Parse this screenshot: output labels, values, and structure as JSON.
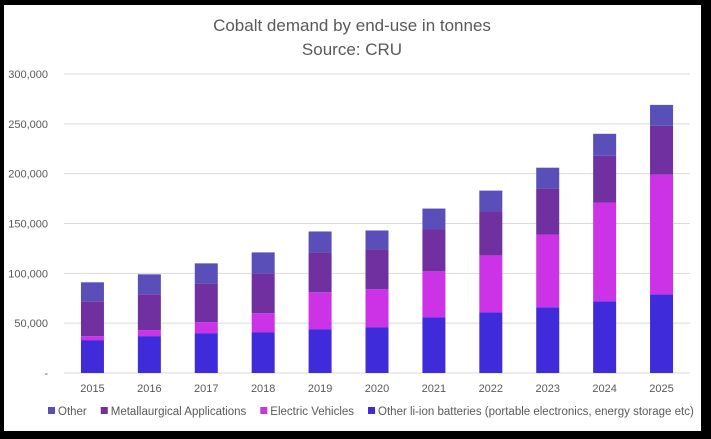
{
  "chart_data": {
    "type": "bar",
    "stacked": true,
    "title": "Cobalt demand by end-use in tonnes",
    "subtitle": "Source: CRU",
    "xlabel": "",
    "ylabel": "",
    "ylim": [
      0,
      300000
    ],
    "yticks": [
      0,
      50000,
      100000,
      150000,
      200000,
      250000,
      300000
    ],
    "ytick_labels": [
      "-",
      "50,000",
      "100,000",
      "150,000",
      "200,000",
      "250,000",
      "300,000"
    ],
    "grid": true,
    "legend_position": "bottom",
    "categories": [
      "2015",
      "2016",
      "2017",
      "2018",
      "2019",
      "2020",
      "2021",
      "2022",
      "2023",
      "2024",
      "2025"
    ],
    "series": [
      {
        "name": "Other li-ion batteries (portable electronics, energy storage etc)",
        "color": "#3F2BD9",
        "values": [
          33000,
          37000,
          40000,
          41000,
          44000,
          46000,
          56000,
          61000,
          66000,
          72000,
          79000
        ]
      },
      {
        "name": "Electric Vehicles",
        "color": "#CC33E6",
        "values": [
          4000,
          6000,
          11000,
          19000,
          37000,
          38000,
          46000,
          57000,
          73000,
          99000,
          120000
        ]
      },
      {
        "name": "Metallaurgical Applications",
        "color": "#7030A0",
        "values": [
          35000,
          36000,
          39000,
          40000,
          40000,
          40000,
          42000,
          44000,
          46000,
          47000,
          49000
        ]
      },
      {
        "name": "Other",
        "color": "#5A4FB8",
        "values": [
          19000,
          20000,
          20000,
          21000,
          21000,
          19000,
          21000,
          21000,
          21000,
          22000,
          21000
        ]
      }
    ],
    "legend_order": [
      "Other",
      "Metallaurgical Applications",
      "Electric Vehicles",
      "Other li-ion batteries (portable electronics, energy storage etc)"
    ]
  }
}
